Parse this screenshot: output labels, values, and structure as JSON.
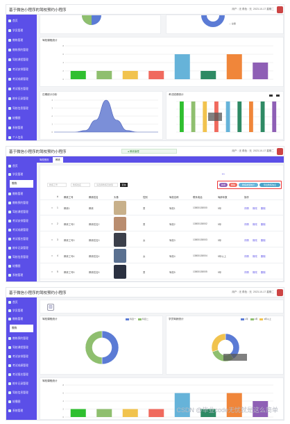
{
  "app_title": "基于微信小程序的驾校预约小程序",
  "user_info": "用户 : 无  角色 : 无",
  "date_text": "2023-10-17  星期二",
  "sidebar": {
    "items": [
      {
        "label": "首页"
      },
      {
        "label": "学员管理"
      },
      {
        "label": "教练管理"
      },
      {
        "label": "教练预约管理"
      },
      {
        "label": "驾校课程管理"
      },
      {
        "label": "考试安排管理"
      },
      {
        "label": "考试成绩管理"
      },
      {
        "label": "考试报名管理"
      },
      {
        "label": "练车记录管理"
      },
      {
        "label": "驾校信息管理"
      },
      {
        "label": "轮播图"
      },
      {
        "label": "系统管理"
      },
      {
        "label": "个人信息"
      }
    ],
    "active_label": "教练"
  },
  "screen1": {
    "bar_panel_title": "驾校课程统计",
    "bell_panel_title": "日期统计分析",
    "multi_panel_title": "考试成绩统计",
    "pie_legend": "总量"
  },
  "screen2": {
    "status_pill": "教练管理",
    "tabs": [
      "驾校首页",
      "教练"
    ],
    "search_placeholders": [
      "教练工号",
      "教练姓名",
      "请选择教练员类型"
    ],
    "search_button": "查询",
    "buttons": [
      "新增",
      "删除",
      "教练类型统计",
      "导出教练信息"
    ],
    "headers": [
      "",
      "#",
      "教练工号",
      "教练姓名",
      "头像",
      "性别",
      "驾校名称",
      "联系电话",
      "驾龄年数",
      "操作"
    ],
    "rows": [
      {
        "num": "1",
        "id": "教练1",
        "name": "教练",
        "gender": "男",
        "school": "驾校1",
        "phone": "13800138000",
        "years": "5年",
        "ops": [
          "详情",
          "修改",
          "删除"
        ]
      },
      {
        "num": "2",
        "id": "教练工号2",
        "name": "教练姓名2",
        "gender": "男",
        "school": "驾校2",
        "phone": "13800138002",
        "years": "5年",
        "ops": [
          "详情",
          "修改",
          "删除"
        ]
      },
      {
        "num": "3",
        "id": "教练工号3",
        "name": "教练姓名3",
        "gender": "女",
        "school": "驾校3",
        "phone": "13800138003",
        "years": "5年",
        "ops": [
          "详情",
          "修改",
          "删除"
        ]
      },
      {
        "num": "4",
        "id": "教练工号4",
        "name": "教练姓名4",
        "gender": "女",
        "school": "驾校4",
        "phone": "13800138004",
        "years": "5年以上",
        "ops": [
          "详情",
          "修改",
          "删除"
        ]
      },
      {
        "num": "5",
        "id": "教练工号5",
        "name": "教练姓名5",
        "gender": "男",
        "school": "驾校5",
        "phone": "13800138005",
        "years": "5年",
        "ops": [
          "详情",
          "修改",
          "删除"
        ]
      }
    ]
  },
  "screen3": {
    "left_title": "驾校课程统计",
    "right_title": "学员驾龄统计",
    "bottom_title": "驾校课程统计",
    "legend_left": [
      "科目一",
      "科目二"
    ],
    "legend_right": [
      "1年",
      "2年",
      "3年以上"
    ]
  },
  "watermark": "CSDN @毕业code无忧就是这么简单",
  "colors": {
    "sidebar": "#5b4fe8",
    "bars": [
      "#2fbf2f",
      "#8fbf6f",
      "#f1c34e",
      "#f06a5e",
      "#66b3d9",
      "#2e8a64",
      "#f0863a",
      "#8e5fb5"
    ]
  },
  "chart_data": [
    {
      "type": "bar",
      "title": "驾校课程统计",
      "categories": [
        "",
        "",
        "",
        "",
        "",
        "",
        "",
        ""
      ],
      "values": [
        2,
        2,
        2,
        2,
        6,
        2,
        6,
        4
      ],
      "ylim": [
        0,
        8
      ]
    },
    {
      "type": "area",
      "title": "日期统计分析",
      "x": [
        0,
        1,
        2,
        3,
        4,
        5,
        6,
        7,
        8,
        9,
        10
      ],
      "values": [
        0,
        0,
        0,
        0.2,
        1.5,
        4,
        1.5,
        0.2,
        0,
        0,
        0
      ],
      "ylim": [
        0,
        4
      ]
    },
    {
      "type": "bar",
      "title": "考试成绩统计",
      "categories": [
        "",
        "",
        "",
        "",
        "",
        "",
        "",
        "",
        ""
      ],
      "series": [
        {
          "values": [
            8,
            8,
            8,
            8,
            8,
            8,
            8,
            8,
            8
          ]
        },
        {
          "values": [
            0,
            0,
            0,
            0,
            0,
            0,
            0,
            0,
            0
          ]
        }
      ],
      "ylim": [
        0,
        8
      ]
    },
    {
      "type": "pie",
      "title": "驾校课程统计",
      "labels": [
        "科目一",
        "科目二"
      ],
      "values": [
        50,
        50
      ]
    },
    {
      "type": "pie",
      "title": "学员驾龄统计",
      "labels": [
        "1年",
        "2年",
        "3年以上"
      ],
      "values": [
        40,
        30,
        30
      ]
    }
  ]
}
